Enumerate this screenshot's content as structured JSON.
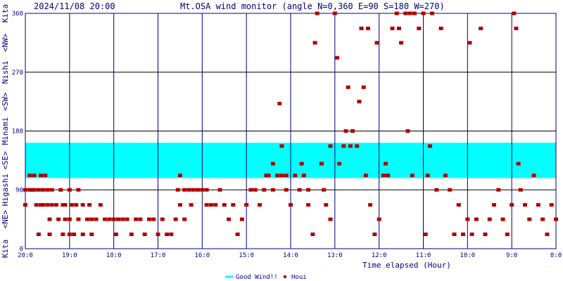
{
  "header": {
    "timestamp": "2024/11/08 20:00",
    "title": "Mt.OSA wind monitor (angle N=0,360 E=90 S=180 W=270)"
  },
  "left_labels": [
    "Kita",
    "<NE>",
    "Higashi",
    "<SE>",
    "Minami",
    "<SW>",
    "Nishi",
    "<NW>",
    "Kita"
  ],
  "legend": {
    "good_wind": "Good Wind!!",
    "houi": "Houi"
  },
  "colors": {
    "grid": "#000080",
    "good_band": "#00ffff",
    "point": "#b00000",
    "text": "#000080"
  },
  "chart_data": {
    "type": "scatter",
    "title": "Mt.OSA wind monitor (angle N=0,360 E=90 S=180 W=270)",
    "xlabel": "Time elapsed (Hour)",
    "ylabel": "",
    "ylim": [
      0,
      360
    ],
    "yticks": [
      0,
      90,
      180,
      270,
      360
    ],
    "xticks": [
      "20:0",
      "19:0",
      "18:0",
      "17:0",
      "16:0",
      "15:0",
      "14:0",
      "13:0",
      "12:0",
      "11:0",
      "10:0",
      "9:0",
      "8:0"
    ],
    "grid": true,
    "legend_position": "bottom",
    "good_wind_band": [
      108,
      162
    ],
    "series": [
      {
        "name": "Houi",
        "points": [
          {
            "t": 0,
            "a": 67
          },
          {
            "t": 0,
            "a": 90
          },
          {
            "t": 0.1,
            "a": 90
          },
          {
            "t": 0.1,
            "a": 112
          },
          {
            "t": 0.15,
            "a": 90
          },
          {
            "t": 0.2,
            "a": 112
          },
          {
            "t": 0.2,
            "a": 90
          },
          {
            "t": 0.25,
            "a": 67
          },
          {
            "t": 0.3,
            "a": 90
          },
          {
            "t": 0.3,
            "a": 22
          },
          {
            "t": 0.35,
            "a": 67
          },
          {
            "t": 0.35,
            "a": 112
          },
          {
            "t": 0.4,
            "a": 90
          },
          {
            "t": 0.4,
            "a": 67
          },
          {
            "t": 0.45,
            "a": 112
          },
          {
            "t": 0.5,
            "a": 90
          },
          {
            "t": 0.5,
            "a": 67
          },
          {
            "t": 0.55,
            "a": 45
          },
          {
            "t": 0.55,
            "a": 22
          },
          {
            "t": 0.6,
            "a": 90
          },
          {
            "t": 0.6,
            "a": 67
          },
          {
            "t": 0.7,
            "a": 67
          },
          {
            "t": 0.75,
            "a": 45
          },
          {
            "t": 0.8,
            "a": 90
          },
          {
            "t": 0.85,
            "a": 67
          },
          {
            "t": 0.85,
            "a": 22
          },
          {
            "t": 0.9,
            "a": 45
          },
          {
            "t": 0.9,
            "a": 67
          },
          {
            "t": 1.0,
            "a": 90
          },
          {
            "t": 1.0,
            "a": 45
          },
          {
            "t": 1.0,
            "a": 22
          },
          {
            "t": 1.05,
            "a": 67
          },
          {
            "t": 1.1,
            "a": 22
          },
          {
            "t": 1.15,
            "a": 67
          },
          {
            "t": 1.2,
            "a": 90
          },
          {
            "t": 1.2,
            "a": 45
          },
          {
            "t": 1.3,
            "a": 67
          },
          {
            "t": 1.3,
            "a": 22
          },
          {
            "t": 1.4,
            "a": 45
          },
          {
            "t": 1.45,
            "a": 67
          },
          {
            "t": 1.5,
            "a": 45
          },
          {
            "t": 1.5,
            "a": 22
          },
          {
            "t": 1.6,
            "a": 45
          },
          {
            "t": 1.7,
            "a": 67
          },
          {
            "t": 1.8,
            "a": 45
          },
          {
            "t": 1.9,
            "a": 45
          },
          {
            "t": 2.0,
            "a": 45
          },
          {
            "t": 2.05,
            "a": 22
          },
          {
            "t": 2.1,
            "a": 45
          },
          {
            "t": 2.2,
            "a": 45
          },
          {
            "t": 2.3,
            "a": 45
          },
          {
            "t": 2.4,
            "a": 22
          },
          {
            "t": 2.5,
            "a": 45
          },
          {
            "t": 2.6,
            "a": 45
          },
          {
            "t": 2.7,
            "a": 22
          },
          {
            "t": 2.8,
            "a": 45
          },
          {
            "t": 2.9,
            "a": 45
          },
          {
            "t": 3.0,
            "a": 22
          },
          {
            "t": 3.1,
            "a": 45
          },
          {
            "t": 3.2,
            "a": 22
          },
          {
            "t": 3.3,
            "a": 22
          },
          {
            "t": 3.4,
            "a": 45
          },
          {
            "t": 3.45,
            "a": 90
          },
          {
            "t": 3.5,
            "a": 67
          },
          {
            "t": 3.5,
            "a": 112
          },
          {
            "t": 3.6,
            "a": 90
          },
          {
            "t": 3.6,
            "a": 45
          },
          {
            "t": 3.7,
            "a": 90
          },
          {
            "t": 3.75,
            "a": 67
          },
          {
            "t": 3.8,
            "a": 90
          },
          {
            "t": 3.9,
            "a": 90
          },
          {
            "t": 4.0,
            "a": 90
          },
          {
            "t": 4.1,
            "a": 90
          },
          {
            "t": 4.1,
            "a": 67
          },
          {
            "t": 4.2,
            "a": 67
          },
          {
            "t": 4.3,
            "a": 67
          },
          {
            "t": 4.4,
            "a": 90
          },
          {
            "t": 4.5,
            "a": 67
          },
          {
            "t": 4.6,
            "a": 45
          },
          {
            "t": 4.7,
            "a": 67
          },
          {
            "t": 4.8,
            "a": 22
          },
          {
            "t": 4.9,
            "a": 45
          },
          {
            "t": 5.0,
            "a": 67
          },
          {
            "t": 5.1,
            "a": 90
          },
          {
            "t": 5.2,
            "a": 90
          },
          {
            "t": 5.3,
            "a": 67
          },
          {
            "t": 5.4,
            "a": 90
          },
          {
            "t": 5.45,
            "a": 112
          },
          {
            "t": 5.5,
            "a": 112
          },
          {
            "t": 5.6,
            "a": 90
          },
          {
            "t": 5.6,
            "a": 130
          },
          {
            "t": 5.7,
            "a": 112
          },
          {
            "t": 5.75,
            "a": 222
          },
          {
            "t": 5.8,
            "a": 112
          },
          {
            "t": 5.8,
            "a": 157
          },
          {
            "t": 5.9,
            "a": 90
          },
          {
            "t": 5.9,
            "a": 112
          },
          {
            "t": 6.0,
            "a": 67
          },
          {
            "t": 6.1,
            "a": 112
          },
          {
            "t": 6.2,
            "a": 90
          },
          {
            "t": 6.25,
            "a": 130
          },
          {
            "t": 6.3,
            "a": 112
          },
          {
            "t": 6.4,
            "a": 90
          },
          {
            "t": 6.4,
            "a": 67
          },
          {
            "t": 6.5,
            "a": 22
          },
          {
            "t": 6.55,
            "a": 315
          },
          {
            "t": 6.6,
            "a": 360
          },
          {
            "t": 6.7,
            "a": 130
          },
          {
            "t": 6.75,
            "a": 90
          },
          {
            "t": 6.8,
            "a": 67
          },
          {
            "t": 6.9,
            "a": 157
          },
          {
            "t": 6.9,
            "a": 45
          },
          {
            "t": 7.0,
            "a": 360
          },
          {
            "t": 7.05,
            "a": 292
          },
          {
            "t": 7.1,
            "a": 130
          },
          {
            "t": 7.2,
            "a": 157
          },
          {
            "t": 7.25,
            "a": 180
          },
          {
            "t": 7.3,
            "a": 247
          },
          {
            "t": 7.35,
            "a": 157
          },
          {
            "t": 7.4,
            "a": 180
          },
          {
            "t": 7.5,
            "a": 157
          },
          {
            "t": 7.55,
            "a": 225
          },
          {
            "t": 7.6,
            "a": 337
          },
          {
            "t": 7.65,
            "a": 247
          },
          {
            "t": 7.7,
            "a": 112
          },
          {
            "t": 7.75,
            "a": 337
          },
          {
            "t": 7.8,
            "a": 67
          },
          {
            "t": 7.9,
            "a": 22
          },
          {
            "t": 7.95,
            "a": 315
          },
          {
            "t": 8.0,
            "a": 45
          },
          {
            "t": 8.1,
            "a": 112
          },
          {
            "t": 8.15,
            "a": 130
          },
          {
            "t": 8.2,
            "a": 112
          },
          {
            "t": 8.3,
            "a": 337
          },
          {
            "t": 8.4,
            "a": 360
          },
          {
            "t": 8.45,
            "a": 337
          },
          {
            "t": 8.5,
            "a": 315
          },
          {
            "t": 8.6,
            "a": 360
          },
          {
            "t": 8.65,
            "a": 180
          },
          {
            "t": 8.7,
            "a": 360
          },
          {
            "t": 8.75,
            "a": 112
          },
          {
            "t": 8.8,
            "a": 360
          },
          {
            "t": 8.9,
            "a": 337
          },
          {
            "t": 9.0,
            "a": 360
          },
          {
            "t": 9.05,
            "a": 22
          },
          {
            "t": 9.1,
            "a": 112
          },
          {
            "t": 9.15,
            "a": 157
          },
          {
            "t": 9.2,
            "a": 360
          },
          {
            "t": 9.3,
            "a": 90
          },
          {
            "t": 9.4,
            "a": 337
          },
          {
            "t": 9.5,
            "a": 112
          },
          {
            "t": 9.6,
            "a": 90
          },
          {
            "t": 9.7,
            "a": 22
          },
          {
            "t": 9.8,
            "a": 67
          },
          {
            "t": 9.9,
            "a": 22
          },
          {
            "t": 10.0,
            "a": 45
          },
          {
            "t": 10.05,
            "a": 315
          },
          {
            "t": 10.1,
            "a": 22
          },
          {
            "t": 10.2,
            "a": 45
          },
          {
            "t": 10.3,
            "a": 337
          },
          {
            "t": 10.4,
            "a": 22
          },
          {
            "t": 10.5,
            "a": 45
          },
          {
            "t": 10.6,
            "a": 67
          },
          {
            "t": 10.7,
            "a": 90
          },
          {
            "t": 10.8,
            "a": 45
          },
          {
            "t": 10.9,
            "a": 22
          },
          {
            "t": 11.0,
            "a": 67
          },
          {
            "t": 11.05,
            "a": 360
          },
          {
            "t": 11.1,
            "a": 337
          },
          {
            "t": 11.15,
            "a": 130
          },
          {
            "t": 11.2,
            "a": 90
          },
          {
            "t": 11.3,
            "a": 67
          },
          {
            "t": 11.4,
            "a": 45
          },
          {
            "t": 11.5,
            "a": 112
          },
          {
            "t": 11.6,
            "a": 67
          },
          {
            "t": 11.7,
            "a": 45
          },
          {
            "t": 11.8,
            "a": 22
          },
          {
            "t": 11.9,
            "a": 67
          },
          {
            "t": 12.0,
            "a": 45
          }
        ]
      }
    ]
  }
}
